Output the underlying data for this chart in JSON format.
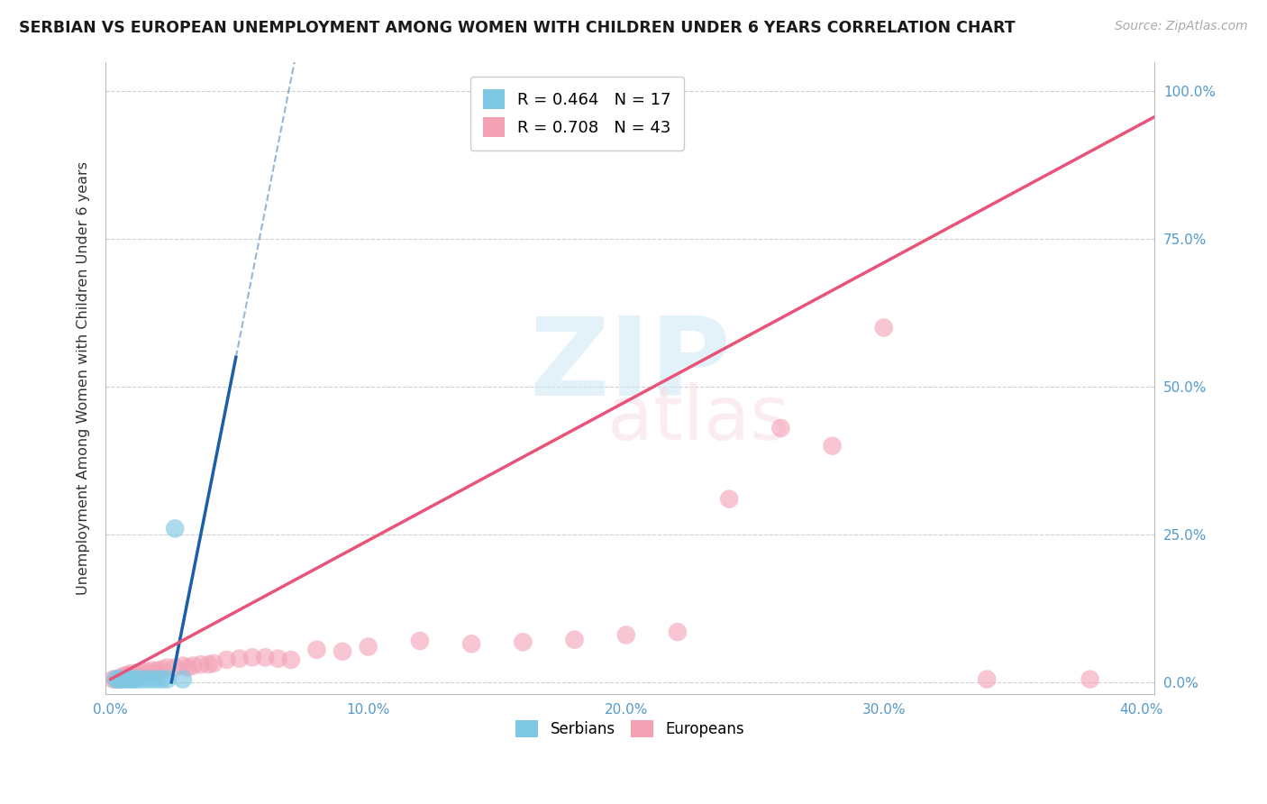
{
  "title": "SERBIAN VS EUROPEAN UNEMPLOYMENT AMONG WOMEN WITH CHILDREN UNDER 6 YEARS CORRELATION CHART",
  "source": "Source: ZipAtlas.com",
  "ylabel": "Unemployment Among Women with Children Under 6 years",
  "xlim": [
    -0.002,
    0.405
  ],
  "ylim": [
    -0.02,
    1.05
  ],
  "xticks": [
    0.0,
    0.1,
    0.2,
    0.3,
    0.4
  ],
  "yticks": [
    0.0,
    0.25,
    0.5,
    0.75,
    1.0
  ],
  "xticklabels": [
    "0.0%",
    "10.0%",
    "20.0%",
    "30.0%",
    "40.0%"
  ],
  "yticklabels": [
    "0.0%",
    "25.0%",
    "50.0%",
    "75.0%",
    "100.0%"
  ],
  "serbians_R": 0.464,
  "serbians_N": 17,
  "europeans_R": 0.708,
  "europeans_N": 43,
  "serbian_color": "#7ec8e3",
  "european_color": "#f4a0b5",
  "serbian_line_color": "#1a5fa8",
  "european_line_color": "#e8537a",
  "bg_color": "#ffffff",
  "grid_color": "#d0d0d0",
  "serbian_scatter_x": [
    0.002,
    0.003,
    0.004,
    0.005,
    0.006,
    0.007,
    0.008,
    0.009,
    0.01,
    0.012,
    0.014,
    0.016,
    0.018,
    0.02,
    0.022,
    0.025,
    0.028
  ],
  "serbian_scatter_y": [
    0.005,
    0.005,
    0.005,
    0.005,
    0.005,
    0.005,
    0.005,
    0.005,
    0.005,
    0.005,
    0.005,
    0.005,
    0.005,
    0.005,
    0.005,
    0.26,
    0.005
  ],
  "european_scatter_x": [
    0.001,
    0.002,
    0.003,
    0.004,
    0.005,
    0.006,
    0.007,
    0.008,
    0.01,
    0.012,
    0.014,
    0.016,
    0.018,
    0.02,
    0.022,
    0.025,
    0.028,
    0.03,
    0.032,
    0.035,
    0.038,
    0.04,
    0.045,
    0.05,
    0.055,
    0.06,
    0.065,
    0.07,
    0.08,
    0.09,
    0.1,
    0.12,
    0.14,
    0.16,
    0.18,
    0.2,
    0.22,
    0.24,
    0.26,
    0.28,
    0.3,
    0.34,
    0.38
  ],
  "european_scatter_y": [
    0.005,
    0.005,
    0.005,
    0.008,
    0.01,
    0.012,
    0.012,
    0.015,
    0.015,
    0.018,
    0.018,
    0.02,
    0.02,
    0.022,
    0.025,
    0.025,
    0.028,
    0.025,
    0.028,
    0.03,
    0.03,
    0.032,
    0.038,
    0.04,
    0.042,
    0.042,
    0.04,
    0.038,
    0.055,
    0.052,
    0.06,
    0.07,
    0.065,
    0.068,
    0.072,
    0.08,
    0.085,
    0.31,
    0.43,
    0.4,
    0.6,
    0.005,
    0.005
  ],
  "serbian_reg_slope": 22.0,
  "serbian_reg_intercept": -0.52,
  "european_reg_slope": 2.35,
  "european_reg_intercept": 0.005
}
